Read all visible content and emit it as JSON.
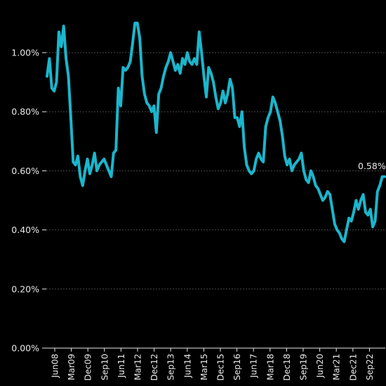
{
  "chart_data": {
    "type": "line",
    "title": "",
    "xlabel": "",
    "ylabel": "",
    "ylim": [
      0,
      1.1
    ],
    "y_ticks": [
      {
        "value": 0.0,
        "label": "0.00%"
      },
      {
        "value": 0.2,
        "label": "0.20%"
      },
      {
        "value": 0.4,
        "label": "0.40%"
      },
      {
        "value": 0.6,
        "label": "0.60%"
      },
      {
        "value": 0.8,
        "label": "0.80%"
      },
      {
        "value": 1.0,
        "label": "1.00%"
      }
    ],
    "x_ticks": [
      "Jun08",
      "Mar09",
      "Dec09",
      "Sep10",
      "Jun11",
      "Mar12",
      "Dec12",
      "Sep13",
      "Jun14",
      "Mar15",
      "Dec15",
      "Sep16",
      "Jun17",
      "Mar18",
      "Dec18",
      "Sep19",
      "Jun20",
      "Mar21",
      "Dec21",
      "Sep22"
    ],
    "grid": true,
    "line_color": "#1bb6cc",
    "end_label": "0.58%",
    "series": [
      {
        "values": [
          0.92,
          0.98,
          0.88,
          0.87,
          0.9,
          1.07,
          1.02,
          1.09,
          0.98,
          0.92,
          0.78,
          0.63,
          0.62,
          0.65,
          0.58,
          0.55,
          0.6,
          0.64,
          0.59,
          0.62,
          0.66,
          0.6,
          0.62,
          0.63,
          0.64,
          0.62,
          0.6,
          0.58,
          0.66,
          0.67,
          0.88,
          0.82,
          0.95,
          0.94,
          0.95,
          0.97,
          1.03,
          1.1,
          1.1,
          1.05,
          0.92,
          0.86,
          0.83,
          0.82,
          0.8,
          0.82,
          0.73,
          0.86,
          0.88,
          0.92,
          0.95,
          0.97,
          1.0,
          0.97,
          0.94,
          0.96,
          0.93,
          0.98,
          0.96,
          1.0,
          0.97,
          0.96,
          0.98,
          0.96,
          1.07,
          1.0,
          0.92,
          0.85,
          0.95,
          0.93,
          0.9,
          0.85,
          0.81,
          0.83,
          0.87,
          0.83,
          0.86,
          0.91,
          0.88,
          0.78,
          0.78,
          0.75,
          0.8,
          0.68,
          0.62,
          0.6,
          0.59,
          0.6,
          0.64,
          0.66,
          0.64,
          0.63,
          0.75,
          0.78,
          0.8,
          0.85,
          0.83,
          0.8,
          0.77,
          0.72,
          0.65,
          0.62,
          0.64,
          0.6,
          0.62,
          0.63,
          0.64,
          0.66,
          0.6,
          0.57,
          0.56,
          0.6,
          0.58,
          0.55,
          0.54,
          0.52,
          0.5,
          0.51,
          0.53,
          0.52,
          0.47,
          0.42,
          0.4,
          0.39,
          0.37,
          0.36,
          0.4,
          0.44,
          0.43,
          0.46,
          0.5,
          0.47,
          0.5,
          0.52,
          0.46,
          0.45,
          0.47,
          0.41,
          0.43,
          0.53,
          0.55,
          0.58,
          0.58
        ]
      }
    ]
  }
}
